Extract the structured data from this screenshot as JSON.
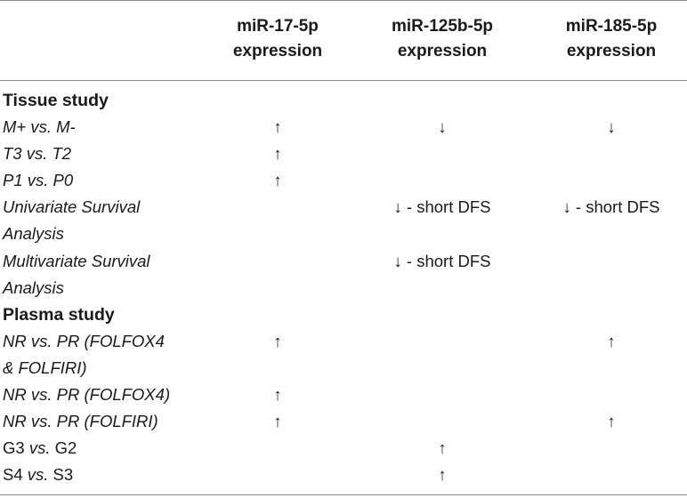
{
  "columns": [
    {
      "line1": "miR-17-5p",
      "line2": "expression"
    },
    {
      "line1": "miR-125b-5p",
      "line2": "expression"
    },
    {
      "line1": "miR-185-5p",
      "line2": "expression"
    }
  ],
  "sections": {
    "tissue": "Tissue study",
    "plasma": "Plasma study"
  },
  "rows": [
    {
      "label": "M+ vs. M-",
      "c1": "↑",
      "c2": "↓",
      "c3": "↓"
    },
    {
      "label": "T3 vs. T2",
      "c1": "↑",
      "c2": "",
      "c3": ""
    },
    {
      "label": "P1 vs. P0",
      "c1": "↑",
      "c2": "",
      "c3": ""
    },
    {
      "label": "Univariate Survival",
      "c1": "",
      "c2": "↓ - short DFS",
      "c3": "↓ - short DFS"
    },
    {
      "label": "Analysis",
      "c1": "",
      "c2": "",
      "c3": ""
    },
    {
      "label": "Multivariate Survival",
      "c1": "",
      "c2": "↓ - short DFS",
      "c3": ""
    },
    {
      "label": "Analysis",
      "c1": "",
      "c2": "",
      "c3": ""
    },
    {
      "label": "NR vs. PR (FOLFOX4",
      "c1": "↑",
      "c2": "",
      "c3": "↑"
    },
    {
      "label": "& FOLFIRI)",
      "c1": "",
      "c2": "",
      "c3": ""
    },
    {
      "label": "NR vs. PR (FOLFOX4)",
      "c1": "↑",
      "c2": "",
      "c3": ""
    },
    {
      "label": "NR vs. PR (FOLFIRI)",
      "c1": "↑",
      "c2": "",
      "c3": "↑"
    },
    {
      "label_pre": "G3 ",
      "label_it": "vs.",
      "label_post": " G2",
      "c1": "",
      "c2": "↑",
      "c3": ""
    },
    {
      "label_pre": "S4 ",
      "label_it": "vs.",
      "label_post": " S3",
      "c1": "",
      "c2": "↑",
      "c3": ""
    }
  ]
}
